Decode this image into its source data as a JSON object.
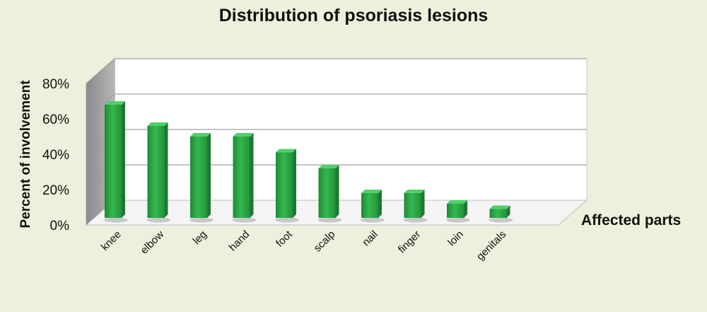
{
  "chart_data": {
    "type": "bar",
    "title": "Distribution of psoriasis lesions",
    "xlabel": "Affected parts",
    "ylabel": "Percent of involvement",
    "categories": [
      "knee",
      "elbow",
      "leg",
      "hand",
      "foot",
      "scalp",
      "nail",
      "finger",
      "loin",
      "genitals"
    ],
    "values": [
      64,
      52,
      46,
      46,
      37,
      28,
      14,
      14,
      8,
      5
    ],
    "ylim": [
      0,
      80
    ],
    "yticks": [
      "0%",
      "20%",
      "40%",
      "60%",
      "80%"
    ],
    "grid": true,
    "bar_color": "#2fb14b"
  }
}
